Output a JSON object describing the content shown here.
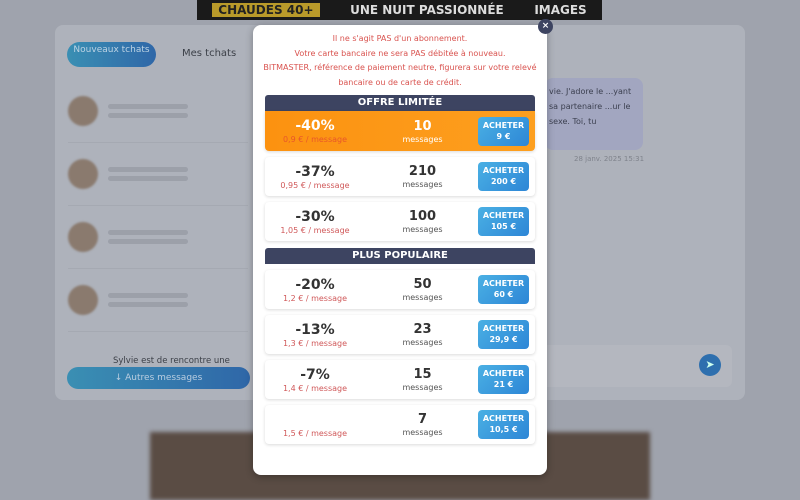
{
  "banner": {
    "left": "CHAUDES 40+",
    "center": "UNE NUIT PASSIONNÉE",
    "right": "IMAGES"
  },
  "tabs": [
    {
      "label": "Nouveaux tchats"
    },
    {
      "label": "Mes tchats"
    }
  ],
  "chat": {
    "bubble": "vie. J'adore le ...yant sa partenaire ...ur le sexe. Toi, tu",
    "date": "28 janv. 2025 15:31",
    "preview": "Sylvie est de rencontre une"
  },
  "more_button": "↓ Autres messages",
  "modal": {
    "close": "×",
    "notice": [
      "Il ne s'agit PAS d'un abonnement.",
      "Votre carte bancaire ne sera PAS débitée à nouveau.",
      "BITMASTER, référence de paiement neutre, figurera sur votre relevé bancaire ou de carte de crédit."
    ],
    "sections": [
      {
        "title": "OFFRE LIMITÉE",
        "offers": [
          {
            "discount": "-40%",
            "per": "0,9 € / message",
            "count": "10",
            "unit": "messages",
            "buy": "ACHETER",
            "price": "9 €",
            "highlight": true
          },
          {
            "discount": "-37%",
            "per": "0,95 € / message",
            "count": "210",
            "unit": "messages",
            "buy": "ACHETER",
            "price": "200 €"
          },
          {
            "discount": "-30%",
            "per": "1,05 € / message",
            "count": "100",
            "unit": "messages",
            "buy": "ACHETER",
            "price": "105 €"
          }
        ]
      },
      {
        "title": "PLUS POPULAIRE",
        "offers": [
          {
            "discount": "-20%",
            "per": "1,2 € / message",
            "count": "50",
            "unit": "messages",
            "buy": "ACHETER",
            "price": "60 €"
          },
          {
            "discount": "-13%",
            "per": "1,3 € / message",
            "count": "23",
            "unit": "messages",
            "buy": "ACHETER",
            "price": "29,9 €"
          },
          {
            "discount": "-7%",
            "per": "1,4 € / message",
            "count": "15",
            "unit": "messages",
            "buy": "ACHETER",
            "price": "21 €"
          },
          {
            "discount": "",
            "per": "1,5 € / message",
            "count": "7",
            "unit": "messages",
            "buy": "ACHETER",
            "price": "10,5 €"
          }
        ]
      }
    ]
  },
  "colors": {
    "accent": "#3d4461",
    "highlight": "#fc9210",
    "buy": "#2d86d6",
    "notice": "#d9534f"
  }
}
